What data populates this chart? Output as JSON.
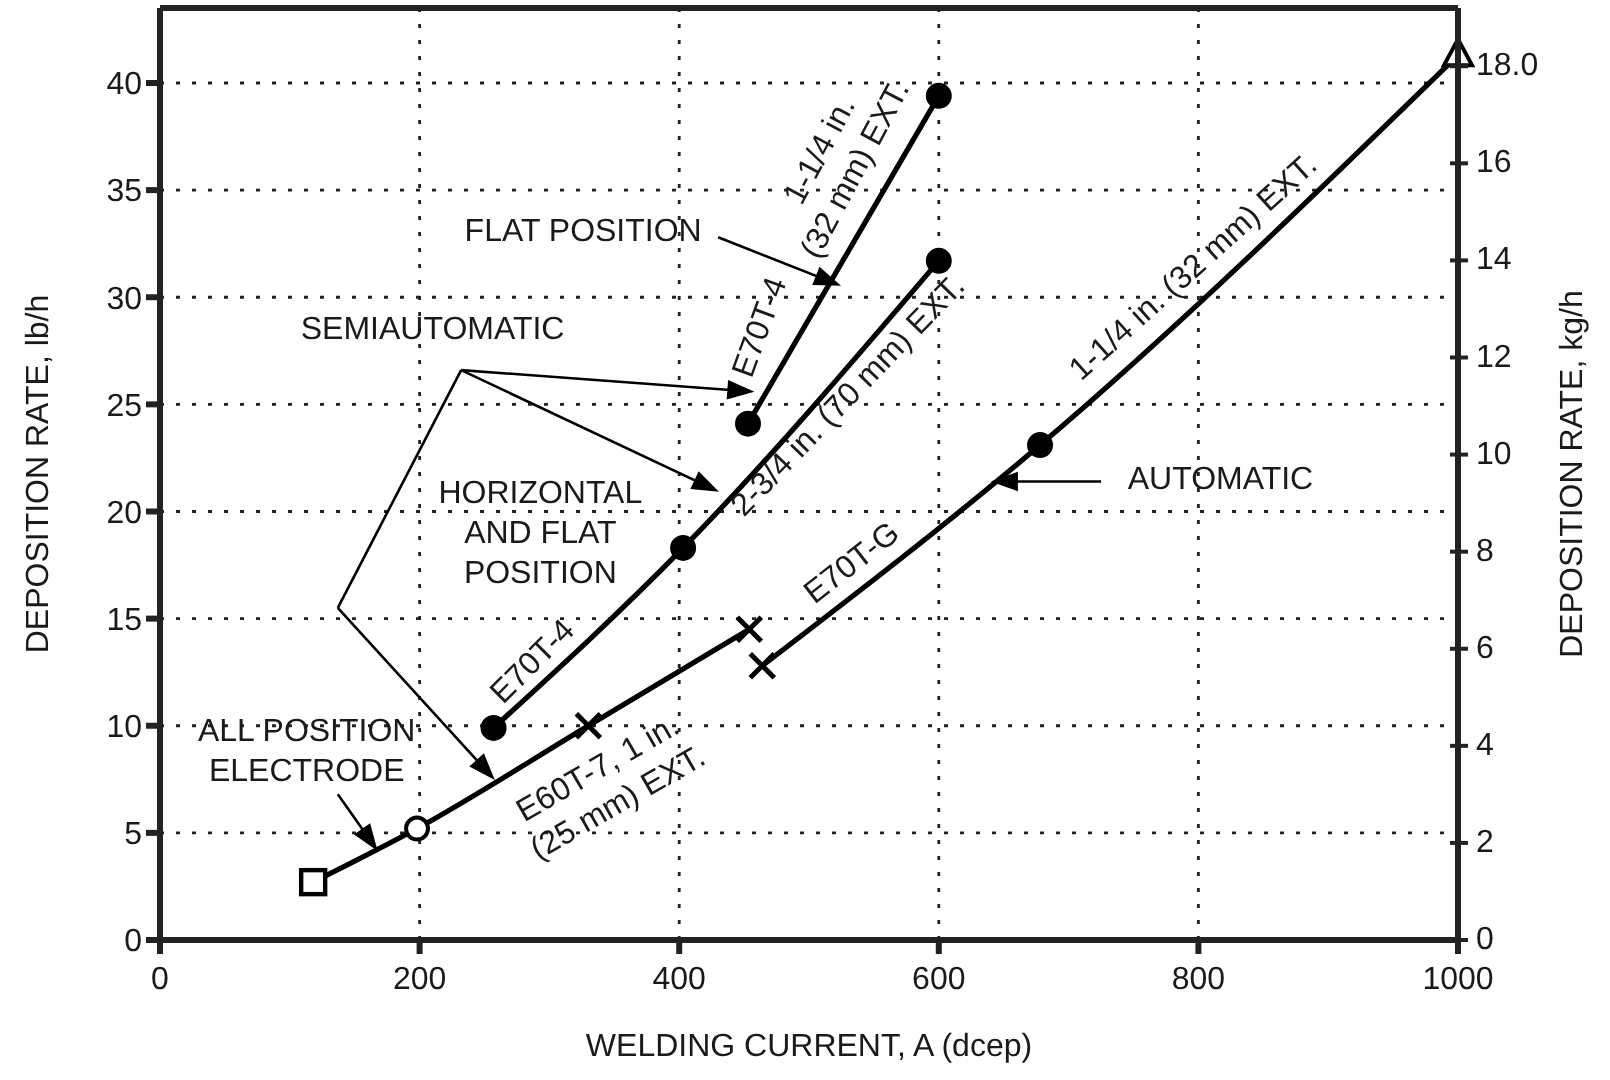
{
  "chart_data": {
    "type": "line",
    "xlabel": "WELDING CURRENT, A (dcep)",
    "ylabel": "DEPOSITION RATE, lb/h",
    "y2label": "DEPOSITION RATE, kg/h",
    "xlim": [
      0,
      1000
    ],
    "xticks": [
      0,
      200,
      400,
      600,
      800,
      1000
    ],
    "ylim": [
      0,
      43.5
    ],
    "yticks": [
      0,
      5,
      10,
      15,
      20,
      25,
      30,
      35,
      40
    ],
    "y2lim": [
      0,
      19.2
    ],
    "y2ticks": [
      0,
      2,
      4,
      6,
      8,
      10,
      12,
      14,
      16,
      {
        "value": 18,
        "label": "18.0"
      }
    ],
    "grid": true,
    "line_style": "solid",
    "series": [
      {
        "color": "#000000",
        "marker": "circle",
        "x": [
          453,
          600
        ],
        "values": [
          24.1,
          39.4
        ]
      },
      {
        "color": "#000000",
        "marker": "circle",
        "x": [
          257,
          403,
          600
        ],
        "values": [
          9.9,
          18.3,
          31.7
        ]
      },
      {
        "color": "#000000",
        "marker": "none",
        "x": [
          118,
          198,
          330,
          454
        ],
        "values": [
          2.7,
          5.2,
          10.0,
          14.5
        ]
      },
      {
        "color": "#000000",
        "marker": "none",
        "x": [
          464,
          678,
          1000
        ],
        "values": [
          12.8,
          23.1,
          41.3
        ]
      },
      {
        "type": "scatter",
        "color": "#000000",
        "marker": "square",
        "x": [
          118
        ],
        "values": [
          2.7
        ]
      },
      {
        "type": "scatter",
        "color": "#ffffff",
        "marker": "circle",
        "x": [
          198
        ],
        "values": [
          5.2
        ]
      },
      {
        "type": "scatter",
        "color": "#000000",
        "marker": "cross",
        "x": [
          330,
          454,
          464
        ],
        "values": [
          10.0,
          14.5,
          12.8
        ]
      },
      {
        "type": "scatter",
        "color": "#000000",
        "marker": "circle",
        "x": [
          678
        ],
        "values": [
          23.1
        ]
      },
      {
        "type": "scatter",
        "color": "#ffffff",
        "marker": "triangle",
        "x": [
          1000
        ],
        "values": [
          41.3
        ]
      }
    ],
    "annotations": [
      "FLAT POSITION",
      "SEMIAUTOMATIC",
      "HORIZONTAL AND FLAT POSITION",
      "ALL POSITION ELECTRODE",
      "AUTOMATIC",
      "1-1/4 in. (32 mm) EXT.",
      "E70T-4",
      "2-3/4 in. (70 mm) EXT.",
      "E70T-4",
      "E60T-7, 1 in. (25 mm) EXT.",
      "E70T-G",
      "1-1/4 in. (32 mm) EXT."
    ]
  }
}
